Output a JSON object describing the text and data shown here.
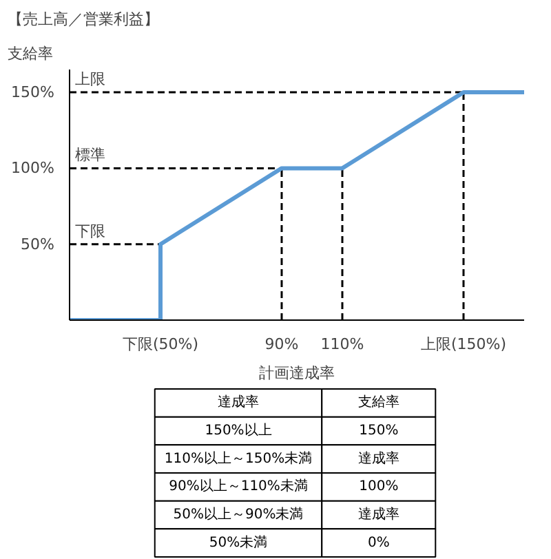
{
  "chart_data": {
    "type": "line",
    "title": "【売上高／営業利益】",
    "ylabel": "支給率",
    "xlabel": "計画達成率",
    "series": [
      {
        "color": "#5b9bd5",
        "x": [
          20,
          50,
          50,
          90,
          110,
          150,
          170
        ],
        "values": [
          0,
          0,
          50,
          100,
          100,
          150,
          150
        ]
      }
    ],
    "xlim": [
      20,
      170
    ],
    "ylim": [
      0,
      165
    ],
    "xticks": [
      {
        "value": 50,
        "label": "下限(50%)"
      },
      {
        "value": 90,
        "label": "90%"
      },
      {
        "value": 110,
        "label": "110%"
      },
      {
        "value": 150,
        "label": "上限(150%)"
      }
    ],
    "yticks": [
      {
        "value": 50,
        "label": "50%"
      },
      {
        "value": 100,
        "label": "100%"
      },
      {
        "value": 150,
        "label": "150%"
      }
    ],
    "ref_lines": [
      {
        "axis": "y",
        "value": 50,
        "label": "下限",
        "line_style": "dashed",
        "color": "#000000"
      },
      {
        "axis": "y",
        "value": 100,
        "label": "標準",
        "line_style": "dashed",
        "color": "#000000"
      },
      {
        "axis": "y",
        "value": 150,
        "label": "上限",
        "line_style": "dashed",
        "color": "#000000"
      },
      {
        "axis": "x",
        "value": 90,
        "line_style": "dashed",
        "color": "#000000"
      },
      {
        "axis": "x",
        "value": 110,
        "line_style": "dashed",
        "color": "#000000"
      },
      {
        "axis": "x",
        "value": 150,
        "line_style": "dashed",
        "color": "#000000"
      }
    ],
    "grid": false,
    "annotations": [
      "達成率",
      "支給率",
      "150%以上",
      "150%",
      "110%以上～150%未満",
      "達成率",
      "90%以上～110%未満",
      "100%",
      "50%以上～90%未満",
      "達成率",
      "50%未満",
      "0%"
    ]
  }
}
